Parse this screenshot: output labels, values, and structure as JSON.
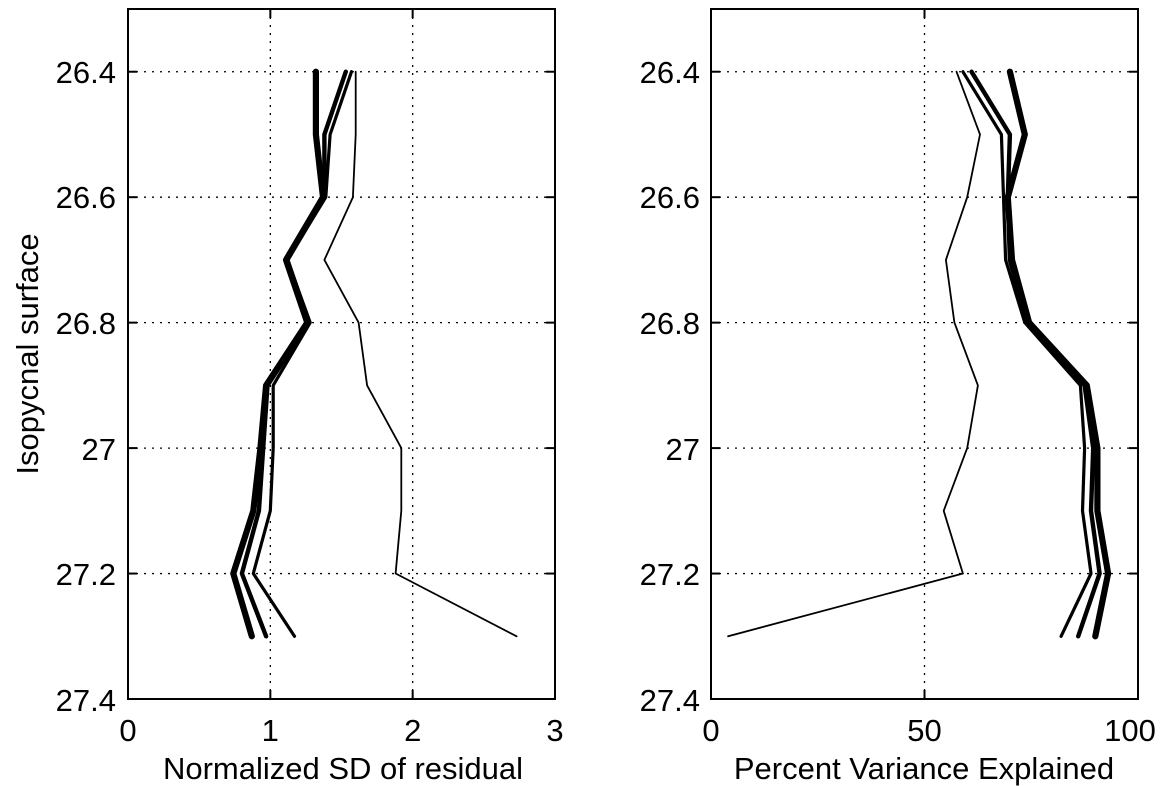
{
  "figure": {
    "left_panel": {
      "xlabel": "Normalized SD of residual",
      "ylabel": "Isopycnal surface",
      "xticks": [
        "0",
        "1",
        "2",
        "3"
      ],
      "yticks": [
        "26.4",
        "26.6",
        "26.8",
        "27",
        "27.2",
        "27.4"
      ]
    },
    "right_panel": {
      "xlabel": "Percent Variance Explained",
      "ylabel": "",
      "xticks": [
        "0",
        "50",
        "100"
      ],
      "yticks": [
        "26.4",
        "26.6",
        "26.8",
        "27",
        "27.2",
        "27.4"
      ]
    }
  },
  "chart_data": [
    {
      "type": "line",
      "title": "",
      "xlabel": "Normalized SD of residual",
      "ylabel": "Isopycnal surface",
      "xlim": [
        0,
        3
      ],
      "ylim": [
        27.4,
        26.3
      ],
      "y_axis_inverted": true,
      "grid": true,
      "y": [
        26.4,
        26.5,
        26.6,
        26.7,
        26.8,
        26.9,
        27.0,
        27.1,
        27.2,
        27.3
      ],
      "series": [
        {
          "style": "thin",
          "x": [
            1.6,
            1.6,
            1.58,
            1.38,
            1.62,
            1.68,
            1.92,
            1.92,
            1.88,
            2.73
          ]
        },
        {
          "style": "medium",
          "x": [
            1.57,
            1.42,
            1.39,
            1.12,
            1.28,
            1.02,
            1.02,
            1.0,
            0.88,
            1.17
          ]
        },
        {
          "style": "thick",
          "x": [
            1.53,
            1.38,
            1.38,
            1.12,
            1.27,
            0.98,
            0.95,
            0.92,
            0.8,
            0.97
          ]
        },
        {
          "style": "thickest",
          "x": [
            1.32,
            1.32,
            1.37,
            1.11,
            1.26,
            0.97,
            0.93,
            0.88,
            0.74,
            0.87
          ]
        }
      ]
    },
    {
      "type": "line",
      "title": "",
      "xlabel": "Percent Variance Explained",
      "ylabel": "",
      "xlim": [
        0,
        100
      ],
      "ylim": [
        27.4,
        26.3
      ],
      "y_axis_inverted": true,
      "grid": true,
      "y": [
        26.4,
        26.5,
        26.6,
        26.7,
        26.8,
        26.9,
        27.0,
        27.1,
        27.2,
        27.3
      ],
      "series": [
        {
          "style": "thin",
          "x": [
            57.5,
            63.0,
            60.0,
            55.0,
            57.0,
            62.5,
            60.0,
            54.5,
            59.0,
            4.0
          ]
        },
        {
          "style": "medium",
          "x": [
            59.0,
            68.0,
            68.5,
            69.0,
            73.5,
            86.5,
            87.5,
            87.0,
            89.0,
            82.0
          ]
        },
        {
          "style": "thick",
          "x": [
            61.0,
            70.0,
            69.5,
            70.0,
            74.0,
            87.5,
            89.5,
            89.0,
            91.0,
            86.0
          ]
        },
        {
          "style": "thickest",
          "x": [
            70.0,
            73.5,
            69.5,
            70.5,
            74.5,
            88.0,
            90.5,
            90.5,
            93.0,
            90.0
          ]
        }
      ]
    }
  ]
}
